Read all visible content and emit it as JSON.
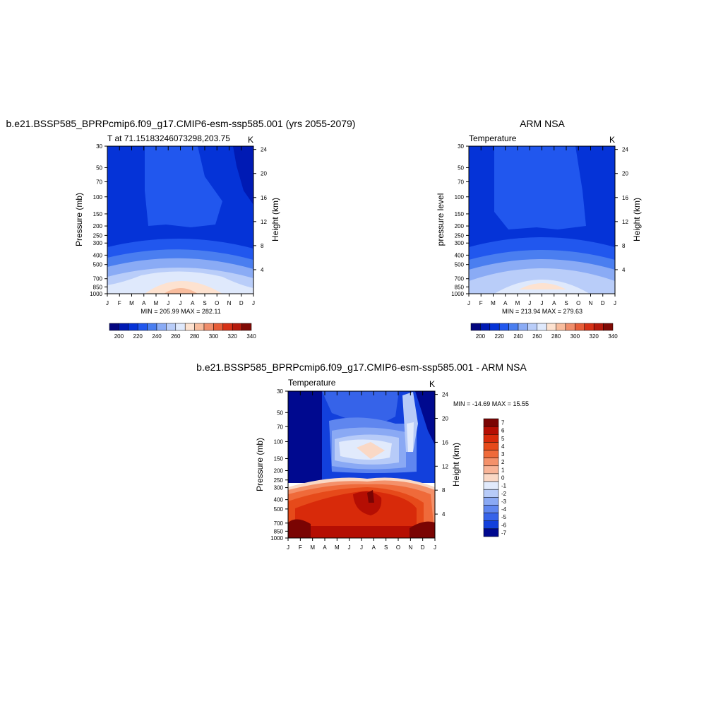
{
  "panels": {
    "model": {
      "title": "b.e21.BSSP585_BPRPcmip6.f09_g17.CMIP6-esm-ssp585.001 (yrs 2055-2079)",
      "subtitle_left": "T at 71.15183246073298,203.75",
      "subtitle_right": "K",
      "ylabel": "Pressure (mb)",
      "ylabel_right": "Height (km)",
      "minmax": "MIN = 205.99 MAX = 282.11"
    },
    "obs": {
      "title": "ARM NSA",
      "subtitle_left": "Temperature",
      "subtitle_right": "K",
      "ylabel": "pressure level",
      "ylabel_right": "Height (km)",
      "minmax": "MIN = 213.94 MAX = 279.63"
    },
    "diff": {
      "title": "b.e21.BSSP585_BPRPcmip6.f09_g17.CMIP6-esm-ssp585.001 - ARM NSA",
      "subtitle_left": "Temperature",
      "subtitle_right": "K",
      "ylabel": "Pressure (mb)",
      "ylabel_right": "Height (km)",
      "minmax": "MIN = -14.69 MAX =  15.55"
    }
  },
  "chart_data": [
    {
      "type": "heatmap",
      "title": "b.e21.BSSP585_BPRPcmip6.f09_g17.CMIP6-esm-ssp585.001 (yrs 2055-2079)",
      "x_ticks": [
        "J",
        "F",
        "M",
        "A",
        "M",
        "J",
        "J",
        "A",
        "S",
        "O",
        "N",
        "D",
        "J"
      ],
      "y_ticks": [
        30,
        50,
        70,
        100,
        150,
        200,
        250,
        300,
        400,
        500,
        700,
        850,
        1000
      ],
      "y_scale": "log",
      "y_right_ticks": [
        24,
        20,
        16,
        12,
        8,
        4
      ],
      "units": "K",
      "levels": [
        200,
        210,
        220,
        230,
        240,
        250,
        260,
        270,
        280,
        290,
        300,
        310,
        320,
        330,
        340
      ],
      "level_labels": [
        "200",
        "220",
        "240",
        "260",
        "280",
        "300",
        "320",
        "340"
      ],
      "min": 205.99,
      "max": 282.11
    },
    {
      "type": "heatmap",
      "title": "ARM NSA",
      "x_ticks": [
        "J",
        "F",
        "M",
        "A",
        "M",
        "J",
        "J",
        "A",
        "S",
        "O",
        "N",
        "D",
        "J"
      ],
      "y_ticks": [
        30,
        50,
        70,
        100,
        150,
        200,
        250,
        300,
        400,
        500,
        700,
        850,
        1000
      ],
      "y_scale": "log",
      "y_right_ticks": [
        24,
        20,
        16,
        12,
        8,
        4
      ],
      "units": "K",
      "levels": [
        200,
        210,
        220,
        230,
        240,
        250,
        260,
        270,
        280,
        290,
        300,
        310,
        320,
        330,
        340
      ],
      "level_labels": [
        "200",
        "220",
        "240",
        "260",
        "280",
        "300",
        "320",
        "340"
      ],
      "min": 213.94,
      "max": 279.63
    },
    {
      "type": "heatmap",
      "title": "b.e21.BSSP585_BPRPcmip6.f09_g17.CMIP6-esm-ssp585.001 - ARM NSA",
      "x_ticks": [
        "J",
        "F",
        "M",
        "A",
        "M",
        "J",
        "J",
        "A",
        "S",
        "O",
        "N",
        "D",
        "J"
      ],
      "y_ticks": [
        30,
        50,
        70,
        100,
        150,
        200,
        250,
        300,
        400,
        500,
        700,
        850,
        1000
      ],
      "y_scale": "log",
      "y_right_ticks": [
        24,
        20,
        16,
        12,
        8,
        4
      ],
      "units": "K",
      "levels": [
        "7",
        "6",
        "5",
        "4",
        "3",
        "2",
        "1",
        "0",
        "-1",
        "-2",
        "-3",
        "-4",
        "-5",
        "-6",
        "-7"
      ],
      "min": -14.69,
      "max": 15.55
    }
  ],
  "colors": {
    "abs_palette": [
      "#03067f",
      "#001ab4",
      "#0533d7",
      "#2157ee",
      "#4a7ef0",
      "#8aabf5",
      "#b9cdf9",
      "#dfe9fc",
      "#fde2d0",
      "#f8bc9d",
      "#f08d6a",
      "#e75d38",
      "#d63116",
      "#b51a0c",
      "#800a05"
    ],
    "diff_palette": [
      "#7a0403",
      "#b50e03",
      "#d82a0a",
      "#e64a1a",
      "#ef6a3a",
      "#f4916a",
      "#f8b497",
      "#fad8c5",
      "#e1eafc",
      "#b7cbf8",
      "#8aa9f4",
      "#5f86ef",
      "#3663e9",
      "#1240dc",
      "#00098f"
    ]
  }
}
